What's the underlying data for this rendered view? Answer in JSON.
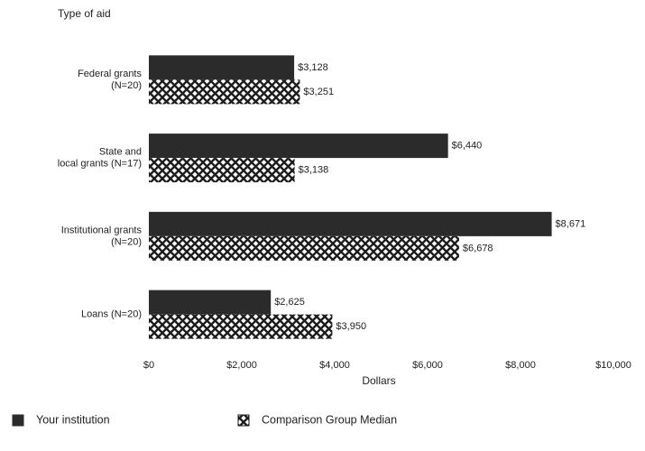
{
  "chart_data": {
    "type": "bar",
    "orientation": "horizontal",
    "y_axis_title": "Type of aid",
    "x_axis_title": "Dollars",
    "categories": [
      [
        "Federal grants",
        "(N=20)"
      ],
      [
        "State and",
        "local grants (N=17)"
      ],
      [
        "Institutional grants",
        "(N=20)"
      ],
      [
        "Loans (N=20)"
      ]
    ],
    "series": [
      {
        "name": "Your institution",
        "color": "#2b2b2b",
        "fill": "solid",
        "values": [
          3128,
          6440,
          8671,
          2625
        ],
        "value_labels": [
          "$3,128",
          "$6,440",
          "$8,671",
          "$2,625"
        ]
      },
      {
        "name": "Comparison Group Median",
        "color": "#1e1e1e",
        "fill": "crosshatch",
        "values": [
          3251,
          3138,
          6678,
          3950
        ],
        "value_labels": [
          "$3,251",
          "$3,138",
          "$6,678",
          "$3,950"
        ]
      }
    ],
    "xlim": [
      0,
      10000
    ],
    "xticks": [
      {
        "value": 0,
        "label": "$0"
      },
      {
        "value": 2000,
        "label": "$2,000"
      },
      {
        "value": 4000,
        "label": "$4,000"
      },
      {
        "value": 6000,
        "label": "$6,000"
      },
      {
        "value": 8000,
        "label": "$8,000"
      },
      {
        "value": 10000,
        "label": "$10,000"
      }
    ],
    "legend": "bottom-left"
  }
}
